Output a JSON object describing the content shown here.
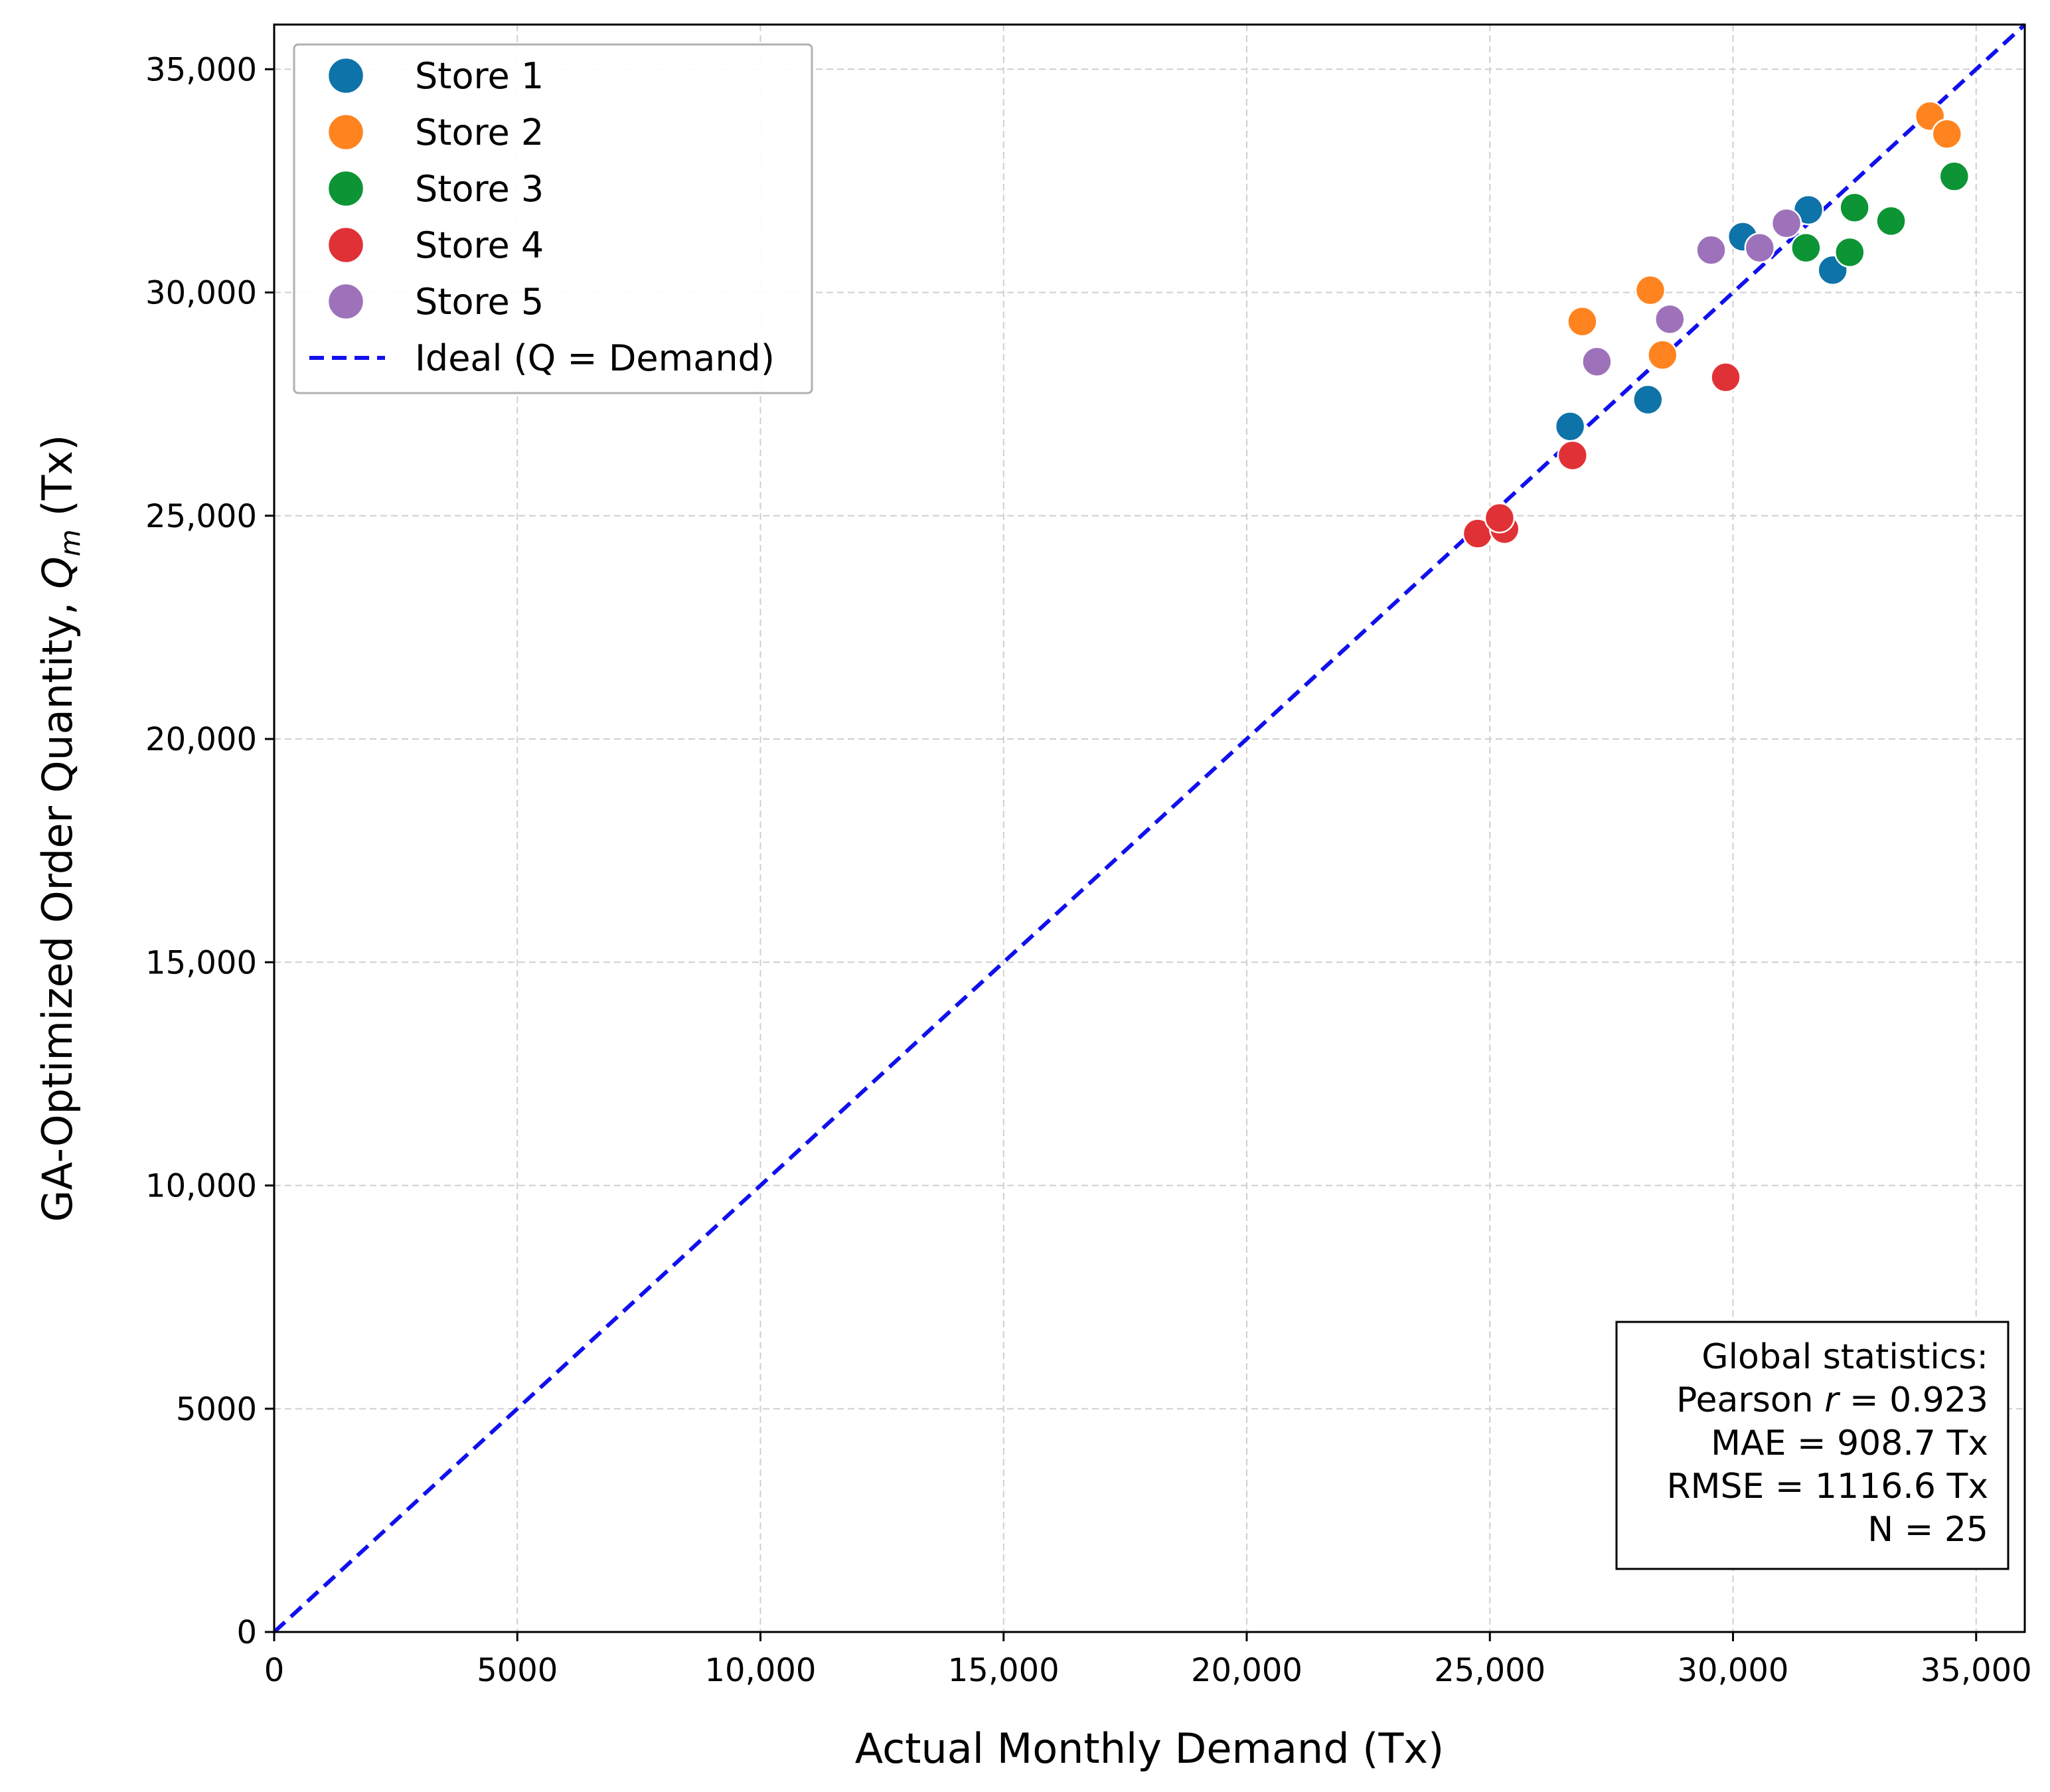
{
  "chart_data": {
    "type": "scatter",
    "title": "",
    "xlabel": "Actual Monthly Demand (Tx)",
    "ylabel_main": "GA-Optimized Order Quantity, ",
    "ylabel_var": "Q",
    "ylabel_sub": "m",
    "ylabel_unit": " (Tx)",
    "xlim": [
      0,
      36000
    ],
    "ylim": [
      0,
      36000
    ],
    "grid": true,
    "legend_position": "top-left",
    "x_ticks": [
      {
        "value": 0,
        "label": "0"
      },
      {
        "value": 5000,
        "label": "5000"
      },
      {
        "value": 10000,
        "label": "10,000"
      },
      {
        "value": 15000,
        "label": "15,000"
      },
      {
        "value": 20000,
        "label": "20,000"
      },
      {
        "value": 25000,
        "label": "25,000"
      },
      {
        "value": 30000,
        "label": "30,000"
      },
      {
        "value": 35000,
        "label": "35,000"
      }
    ],
    "y_ticks": [
      {
        "value": 0,
        "label": "0"
      },
      {
        "value": 5000,
        "label": "5000"
      },
      {
        "value": 10000,
        "label": "10,000"
      },
      {
        "value": 15000,
        "label": "15,000"
      },
      {
        "value": 20000,
        "label": "20,000"
      },
      {
        "value": 25000,
        "label": "25,000"
      },
      {
        "value": 30000,
        "label": "30,000"
      },
      {
        "value": 35000,
        "label": "35,000"
      }
    ],
    "series": [
      {
        "name": "Store 1",
        "color": "#0e73a8",
        "points": [
          [
            26650,
            27000
          ],
          [
            28250,
            27600
          ],
          [
            30200,
            31250
          ],
          [
            31550,
            31850
          ],
          [
            32050,
            30500
          ]
        ]
      },
      {
        "name": "Store 2",
        "color": "#ff8420",
        "points": [
          [
            26900,
            29350
          ],
          [
            28300,
            30050
          ],
          [
            28550,
            28600
          ],
          [
            34050,
            33950
          ],
          [
            34400,
            33550
          ]
        ]
      },
      {
        "name": "Store 3",
        "color": "#0d9434",
        "points": [
          [
            31500,
            31000
          ],
          [
            32400,
            30900
          ],
          [
            32500,
            31900
          ],
          [
            33250,
            31600
          ],
          [
            34550,
            32600
          ]
        ]
      },
      {
        "name": "Store 4",
        "color": "#e03236",
        "points": [
          [
            24750,
            24600
          ],
          [
            25300,
            24700
          ],
          [
            25200,
            24950
          ],
          [
            26700,
            26350
          ],
          [
            29850,
            28100
          ]
        ]
      },
      {
        "name": "Store 5",
        "color": "#9e72ba",
        "points": [
          [
            27200,
            28450
          ],
          [
            28700,
            29400
          ],
          [
            29550,
            30950
          ],
          [
            30550,
            31000
          ],
          [
            31100,
            31550
          ]
        ]
      }
    ],
    "ideal_line": {
      "label": "Ideal (Q = Demand)",
      "color": "#1010ee",
      "from": [
        0,
        0
      ],
      "to": [
        36000,
        36000
      ]
    },
    "stats_box": {
      "heading": "Global statistics:",
      "pearson_prefix": "Pearson ",
      "pearson_var": "r",
      "pearson_value": " = 0.923",
      "mae": "MAE = 908.7 Tx",
      "rmse": "RMSE = 1116.6 Tx",
      "n": "N = 25"
    }
  }
}
